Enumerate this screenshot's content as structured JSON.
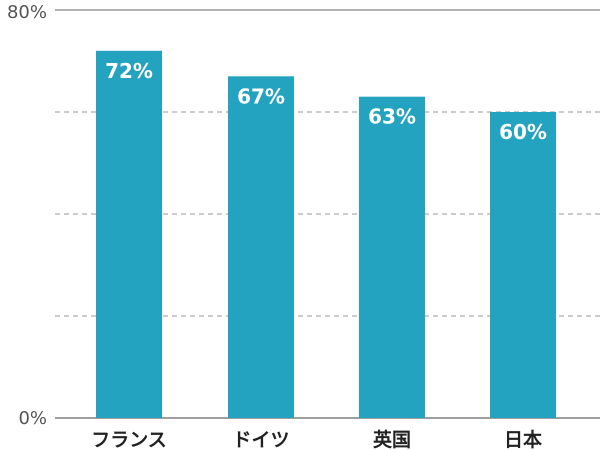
{
  "chart_data": {
    "type": "bar",
    "categories": [
      "フランス",
      "ドイツ",
      "英国",
      "日本"
    ],
    "values": [
      72,
      67,
      63,
      60
    ],
    "data_labels": [
      "72%",
      "67%",
      "63%",
      "60%"
    ],
    "title": "",
    "xlabel": "",
    "ylabel": "",
    "ylim": [
      0,
      80
    ],
    "y_ticks": [
      {
        "value": 0,
        "label": "0%"
      },
      {
        "value": 80,
        "label": "80%"
      }
    ],
    "gridlines": [
      20,
      40,
      60
    ],
    "grid": true,
    "legend": "none",
    "colors": {
      "bar": "#23a3c0",
      "gridline": "#999999",
      "axis": "#666666",
      "top_line": "#666666"
    }
  }
}
